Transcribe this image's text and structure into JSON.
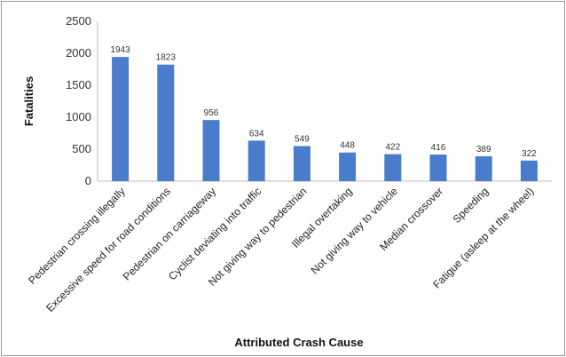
{
  "chart_data": {
    "type": "bar",
    "title": "",
    "xlabel": "Attributed Crash Cause",
    "ylabel": "Fatalities",
    "ylim": [
      0,
      2500
    ],
    "yticks": [
      0,
      500,
      1000,
      1500,
      2000,
      2500
    ],
    "grid": false,
    "legend": "none",
    "bar_color": "#4a7ccc",
    "categories": [
      "Pedestrian crossing illegally",
      "Excessive speed for road conditions",
      "Pedestrian on carriageway",
      "Cyclist deviating into traffic",
      "Not giving way to pedestrian",
      "Illegal overtaking",
      "Not giving way to vehicle",
      "Median crossover",
      "Speeding",
      "Fatigue (asleep at the wheel)"
    ],
    "values": [
      1943,
      1823,
      956,
      634,
      549,
      448,
      422,
      416,
      389,
      322
    ],
    "value_labels": [
      "1943",
      "1823",
      "956",
      "634",
      "549",
      "448",
      "422",
      "416",
      "389",
      "322"
    ]
  }
}
